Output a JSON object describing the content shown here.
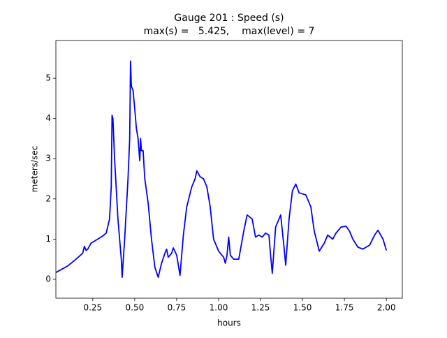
{
  "chart_data": {
    "type": "line",
    "title": "Gauge 201 : Speed (s)",
    "subtitle": "max(s) =   5.425,    max(level) = 7",
    "x_label": "hours",
    "y_label": "meters/sec",
    "color": "#0000ff",
    "x": [
      0.03,
      0.1,
      0.15,
      0.19,
      0.2,
      0.21,
      0.22,
      0.24,
      0.28,
      0.31,
      0.33,
      0.35,
      0.36,
      0.365,
      0.37,
      0.38,
      0.4,
      0.42,
      0.425,
      0.44,
      0.46,
      0.47,
      0.475,
      0.48,
      0.49,
      0.5,
      0.51,
      0.52,
      0.53,
      0.535,
      0.54,
      0.55,
      0.56,
      0.58,
      0.6,
      0.62,
      0.64,
      0.66,
      0.68,
      0.69,
      0.7,
      0.72,
      0.73,
      0.75,
      0.77,
      0.79,
      0.81,
      0.84,
      0.86,
      0.87,
      0.89,
      0.91,
      0.93,
      0.95,
      0.97,
      1.0,
      1.03,
      1.04,
      1.05,
      1.06,
      1.07,
      1.09,
      1.12,
      1.15,
      1.17,
      1.2,
      1.22,
      1.24,
      1.26,
      1.28,
      1.3,
      1.31,
      1.32,
      1.34,
      1.37,
      1.39,
      1.4,
      1.42,
      1.44,
      1.46,
      1.48,
      1.52,
      1.55,
      1.57,
      1.6,
      1.63,
      1.65,
      1.68,
      1.7,
      1.73,
      1.76,
      1.78,
      1.8,
      1.83,
      1.86,
      1.9,
      1.93,
      1.95,
      1.98,
      2.0
    ],
    "values": [
      0.17,
      0.33,
      0.5,
      0.65,
      0.82,
      0.72,
      0.75,
      0.9,
      1.0,
      1.08,
      1.15,
      1.5,
      2.3,
      4.08,
      4.0,
      3.0,
      1.5,
      0.5,
      0.05,
      1.0,
      2.5,
      3.5,
      5.43,
      4.8,
      4.7,
      4.25,
      3.75,
      3.5,
      2.95,
      3.5,
      3.2,
      3.2,
      2.5,
      1.9,
      1.0,
      0.3,
      0.05,
      0.4,
      0.65,
      0.75,
      0.55,
      0.65,
      0.78,
      0.6,
      0.1,
      1.1,
      1.8,
      2.3,
      2.5,
      2.7,
      2.55,
      2.5,
      2.3,
      1.8,
      1.0,
      0.7,
      0.55,
      0.4,
      0.6,
      1.05,
      0.6,
      0.5,
      0.5,
      1.2,
      1.6,
      1.5,
      1.05,
      1.1,
      1.05,
      1.15,
      1.1,
      0.6,
      0.15,
      1.3,
      1.6,
      0.8,
      0.35,
      1.5,
      2.2,
      2.37,
      2.15,
      2.1,
      1.8,
      1.2,
      0.7,
      0.9,
      1.1,
      1.0,
      1.15,
      1.3,
      1.32,
      1.2,
      1.0,
      0.8,
      0.75,
      0.85,
      1.1,
      1.22,
      1.0,
      0.72
    ],
    "xlim": [
      0.03,
      2.095
    ],
    "ylim": [
      -0.47,
      5.94
    ],
    "xticks": [
      0.25,
      {
        "value": 0.5,
        "label": "0.50"
      },
      0.75,
      {
        "value": 1.0,
        "label": "1.00"
      },
      1.25,
      {
        "value": 1.5,
        "label": "1.50"
      },
      1.75,
      {
        "value": 2.0,
        "label": "2.00"
      }
    ],
    "yticks": [
      0,
      1,
      2,
      3,
      4,
      5
    ]
  }
}
